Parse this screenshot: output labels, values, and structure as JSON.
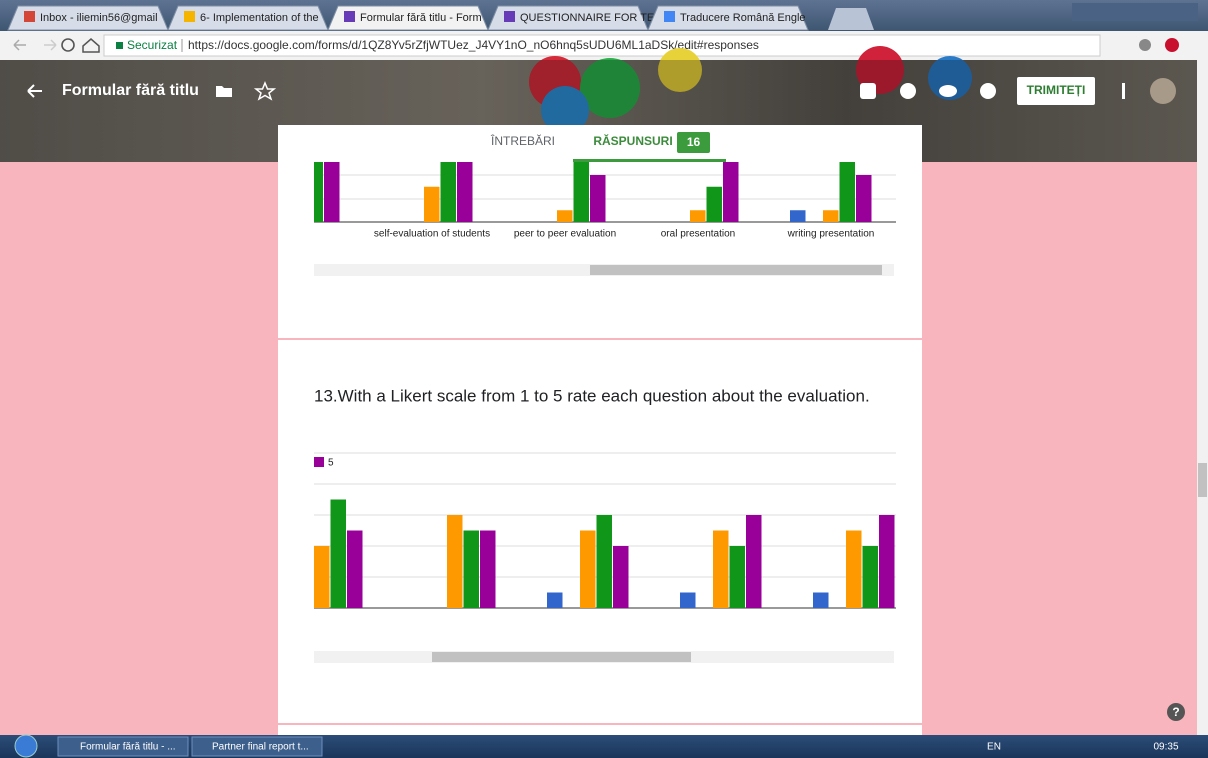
{
  "browser": {
    "tabs": [
      "Inbox - iliemin56@gmail",
      "6- Implementation of the",
      "Formular fără titlu - Form",
      "QUESTIONNAIRE FOR TE",
      "Traducere Română Engle"
    ],
    "secure_label": "Securizat",
    "url": "https://docs.google.com/forms/d/1QZ8Yv5rZfjWTUez_J4VY1nO_nO6hnq5sUDU6ML1aDSk/edit#responses"
  },
  "form_header": {
    "title": "Formular fără titlu",
    "send_button": "TRIMITEȚI",
    "questions_tab": "ÎNTREBĂRI",
    "responses_tab": "RĂSPUNSURI",
    "response_count": 16
  },
  "chart_data": [
    {
      "type": "bar",
      "categories": [
        ")",
        "self-evaluation of students",
        "peer to peer evaluation",
        "oral presentation",
        "writing presentation"
      ],
      "series": [
        {
          "color": "#3366cc",
          "values": [
            0,
            0,
            0,
            0,
            1
          ]
        },
        {
          "color": "#dc3912",
          "values": [
            0,
            0,
            0,
            0,
            0
          ]
        },
        {
          "color": "#ff9900",
          "values": [
            0,
            3,
            1,
            1,
            1
          ]
        },
        {
          "color": "#109618",
          "values": [
            6,
            6,
            6,
            3,
            6
          ]
        },
        {
          "color": "#990099",
          "values": [
            6,
            6,
            4,
            6,
            4
          ]
        }
      ]
    },
    {
      "type": "bar",
      "title": "13.With a Likert scale from 1 to 5 rate each question about the evaluation.",
      "categories": [
        null,
        null,
        null,
        null,
        null
      ],
      "series": [
        {
          "color": "#3366cc",
          "values": [
            0,
            0,
            1,
            1,
            1
          ]
        },
        {
          "color": "#dc3912",
          "values": [
            0,
            0,
            0,
            0,
            0
          ]
        },
        {
          "color": "#ff9900",
          "values": [
            4,
            6,
            5,
            5,
            5
          ]
        },
        {
          "color": "#109618",
          "values": [
            7,
            5,
            6,
            4,
            4
          ]
        },
        {
          "name": "5",
          "color": "#990099",
          "values": [
            5,
            5,
            4,
            6,
            6
          ]
        }
      ]
    }
  ],
  "help_icon": "?",
  "taskbar": {
    "items": [
      "Formular fără titlu - ...",
      "Partner final report t..."
    ],
    "language": "EN",
    "clock": "09:35"
  }
}
